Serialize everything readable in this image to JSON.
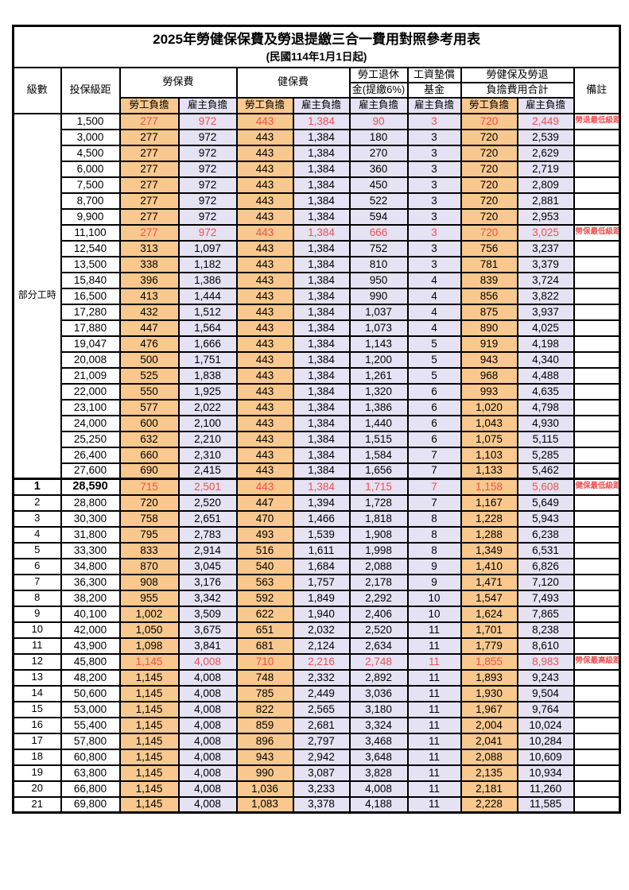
{
  "title": "2025年勞健保保費及勞退提繳三合一費用對照參考用表",
  "subtitle": "(民國114年1月1日起)",
  "header": {
    "level": "級數",
    "bracket": "投保級距",
    "labor_ins": "勞保費",
    "health_ins": "健保費",
    "pension_line1": "勞工退休",
    "pension_line2": "金(提繳6%)",
    "wage_fund_line1": "工資墊償",
    "wage_fund_line2": "基金",
    "total_line1": "勞健保及勞退",
    "total_line2": "負擔費用合計",
    "remark": "備註",
    "employee": "勞工負擔",
    "employer": "雇主負擔"
  },
  "part_time_label": "部分工時",
  "part_time_rowspan": 23,
  "colors": {
    "employee_fill": "#F8C88E",
    "employer_fill": "#E4E2F3",
    "highlight_text": "#F05050",
    "border": "#000000"
  },
  "row_fields": [
    "level",
    "bracket",
    "labor_ins_employee",
    "labor_ins_employer",
    "health_ins_employee",
    "health_ins_employer",
    "pension_employer",
    "wage_fund_employer",
    "total_employee",
    "total_employer",
    "remark",
    "flag(0=normal,1=red,2=red+bold)"
  ],
  "rows": [
    [
      "",
      "1,500",
      "277",
      "972",
      "443",
      "1,384",
      "90",
      "3",
      "720",
      "2,449",
      "勞退最低級距",
      1
    ],
    [
      "",
      "3,000",
      "277",
      "972",
      "443",
      "1,384",
      "180",
      "3",
      "720",
      "2,539",
      "",
      0
    ],
    [
      "",
      "4,500",
      "277",
      "972",
      "443",
      "1,384",
      "270",
      "3",
      "720",
      "2,629",
      "",
      0
    ],
    [
      "",
      "6,000",
      "277",
      "972",
      "443",
      "1,384",
      "360",
      "3",
      "720",
      "2,719",
      "",
      0
    ],
    [
      "",
      "7,500",
      "277",
      "972",
      "443",
      "1,384",
      "450",
      "3",
      "720",
      "2,809",
      "",
      0
    ],
    [
      "",
      "8,700",
      "277",
      "972",
      "443",
      "1,384",
      "522",
      "3",
      "720",
      "2,881",
      "",
      0
    ],
    [
      "",
      "9,900",
      "277",
      "972",
      "443",
      "1,384",
      "594",
      "3",
      "720",
      "2,953",
      "",
      0
    ],
    [
      "",
      "11,100",
      "277",
      "972",
      "443",
      "1,384",
      "666",
      "3",
      "720",
      "3,025",
      "勞保最低級距",
      1
    ],
    [
      "",
      "12,540",
      "313",
      "1,097",
      "443",
      "1,384",
      "752",
      "3",
      "756",
      "3,237",
      "",
      0
    ],
    [
      "",
      "13,500",
      "338",
      "1,182",
      "443",
      "1,384",
      "810",
      "3",
      "781",
      "3,379",
      "",
      0
    ],
    [
      "",
      "15,840",
      "396",
      "1,386",
      "443",
      "1,384",
      "950",
      "4",
      "839",
      "3,724",
      "",
      0
    ],
    [
      "",
      "16,500",
      "413",
      "1,444",
      "443",
      "1,384",
      "990",
      "4",
      "856",
      "3,822",
      "",
      0
    ],
    [
      "",
      "17,280",
      "432",
      "1,512",
      "443",
      "1,384",
      "1,037",
      "4",
      "875",
      "3,937",
      "",
      0
    ],
    [
      "",
      "17,880",
      "447",
      "1,564",
      "443",
      "1,384",
      "1,073",
      "4",
      "890",
      "4,025",
      "",
      0
    ],
    [
      "",
      "19,047",
      "476",
      "1,666",
      "443",
      "1,384",
      "1,143",
      "5",
      "919",
      "4,198",
      "",
      0
    ],
    [
      "",
      "20,008",
      "500",
      "1,751",
      "443",
      "1,384",
      "1,200",
      "5",
      "943",
      "4,340",
      "",
      0
    ],
    [
      "",
      "21,009",
      "525",
      "1,838",
      "443",
      "1,384",
      "1,261",
      "5",
      "968",
      "4,488",
      "",
      0
    ],
    [
      "",
      "22,000",
      "550",
      "1,925",
      "443",
      "1,384",
      "1,320",
      "6",
      "993",
      "4,635",
      "",
      0
    ],
    [
      "",
      "23,100",
      "577",
      "2,022",
      "443",
      "1,384",
      "1,386",
      "6",
      "1,020",
      "4,798",
      "",
      0
    ],
    [
      "",
      "24,000",
      "600",
      "2,100",
      "443",
      "1,384",
      "1,440",
      "6",
      "1,043",
      "4,930",
      "",
      0
    ],
    [
      "",
      "25,250",
      "632",
      "2,210",
      "443",
      "1,384",
      "1,515",
      "6",
      "1,075",
      "5,115",
      "",
      0
    ],
    [
      "",
      "26,400",
      "660",
      "2,310",
      "443",
      "1,384",
      "1,584",
      "7",
      "1,103",
      "5,285",
      "",
      0
    ],
    [
      "",
      "27,600",
      "690",
      "2,415",
      "443",
      "1,384",
      "1,656",
      "7",
      "1,133",
      "5,462",
      "",
      0
    ],
    [
      "1",
      "28,590",
      "715",
      "2,501",
      "443",
      "1,384",
      "1,715",
      "7",
      "1,158",
      "5,608",
      "健保最低級距",
      2
    ],
    [
      "2",
      "28,800",
      "720",
      "2,520",
      "447",
      "1,394",
      "1,728",
      "7",
      "1,167",
      "5,649",
      "",
      0
    ],
    [
      "3",
      "30,300",
      "758",
      "2,651",
      "470",
      "1,466",
      "1,818",
      "8",
      "1,228",
      "5,943",
      "",
      0
    ],
    [
      "4",
      "31,800",
      "795",
      "2,783",
      "493",
      "1,539",
      "1,908",
      "8",
      "1,288",
      "6,238",
      "",
      0
    ],
    [
      "5",
      "33,300",
      "833",
      "2,914",
      "516",
      "1,611",
      "1,998",
      "8",
      "1,349",
      "6,531",
      "",
      0
    ],
    [
      "6",
      "34,800",
      "870",
      "3,045",
      "540",
      "1,684",
      "2,088",
      "9",
      "1,410",
      "6,826",
      "",
      0
    ],
    [
      "7",
      "36,300",
      "908",
      "3,176",
      "563",
      "1,757",
      "2,178",
      "9",
      "1,471",
      "7,120",
      "",
      0
    ],
    [
      "8",
      "38,200",
      "955",
      "3,342",
      "592",
      "1,849",
      "2,292",
      "10",
      "1,547",
      "7,493",
      "",
      0
    ],
    [
      "9",
      "40,100",
      "1,002",
      "3,509",
      "622",
      "1,940",
      "2,406",
      "10",
      "1,624",
      "7,865",
      "",
      0
    ],
    [
      "10",
      "42,000",
      "1,050",
      "3,675",
      "651",
      "2,032",
      "2,520",
      "11",
      "1,701",
      "8,238",
      "",
      0
    ],
    [
      "11",
      "43,900",
      "1,098",
      "3,841",
      "681",
      "2,124",
      "2,634",
      "11",
      "1,779",
      "8,610",
      "",
      0
    ],
    [
      "12",
      "45,800",
      "1,145",
      "4,008",
      "710",
      "2,216",
      "2,748",
      "11",
      "1,855",
      "8,983",
      "勞保最高級距",
      1
    ],
    [
      "13",
      "48,200",
      "1,145",
      "4,008",
      "748",
      "2,332",
      "2,892",
      "11",
      "1,893",
      "9,243",
      "",
      0
    ],
    [
      "14",
      "50,600",
      "1,145",
      "4,008",
      "785",
      "2,449",
      "3,036",
      "11",
      "1,930",
      "9,504",
      "",
      0
    ],
    [
      "15",
      "53,000",
      "1,145",
      "4,008",
      "822",
      "2,565",
      "3,180",
      "11",
      "1,967",
      "9,764",
      "",
      0
    ],
    [
      "16",
      "55,400",
      "1,145",
      "4,008",
      "859",
      "2,681",
      "3,324",
      "11",
      "2,004",
      "10,024",
      "",
      0
    ],
    [
      "17",
      "57,800",
      "1,145",
      "4,008",
      "896",
      "2,797",
      "3,468",
      "11",
      "2,041",
      "10,284",
      "",
      0
    ],
    [
      "18",
      "60,800",
      "1,145",
      "4,008",
      "943",
      "2,942",
      "3,648",
      "11",
      "2,088",
      "10,609",
      "",
      0
    ],
    [
      "19",
      "63,800",
      "1,145",
      "4,008",
      "990",
      "3,087",
      "3,828",
      "11",
      "2,135",
      "10,934",
      "",
      0
    ],
    [
      "20",
      "66,800",
      "1,145",
      "4,008",
      "1,036",
      "3,233",
      "4,008",
      "11",
      "2,181",
      "11,260",
      "",
      0
    ],
    [
      "21",
      "69,800",
      "1,145",
      "4,008",
      "1,083",
      "3,378",
      "4,188",
      "11",
      "2,228",
      "11,585",
      "",
      0
    ]
  ]
}
